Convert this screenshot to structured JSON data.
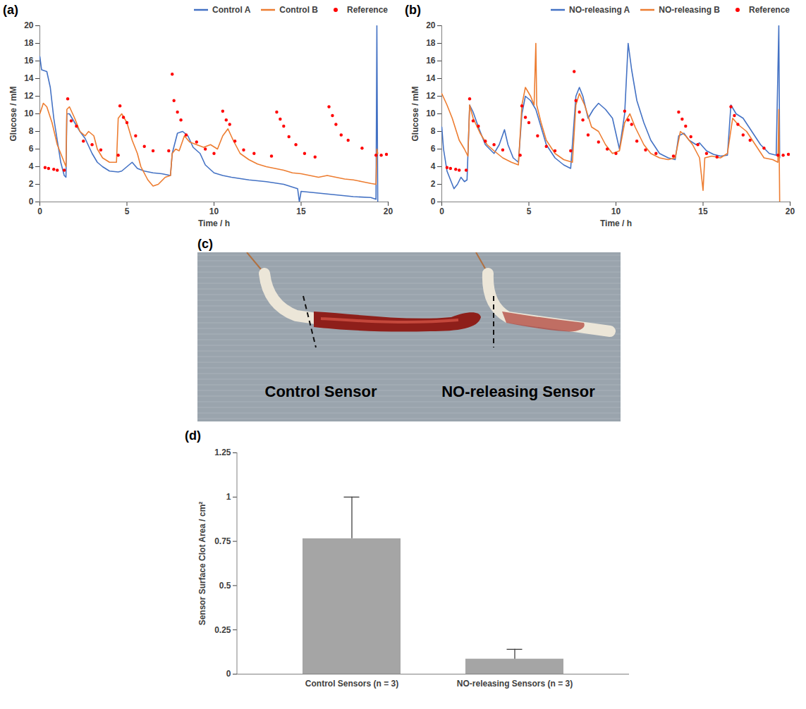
{
  "chart_data": [
    {
      "panel_label": "(a)",
      "type": "line",
      "x_label": "Time / h",
      "y_label": "Glucose / mM",
      "xlim": [
        0,
        20
      ],
      "xticks": [
        0,
        5,
        10,
        15,
        20
      ],
      "ylim": [
        0,
        20
      ],
      "yticks": [
        0,
        2,
        4,
        6,
        8,
        10,
        12,
        14,
        16,
        18,
        20
      ],
      "legend": "top",
      "series": [
        {
          "name": "Control A",
          "color": "#4472c4",
          "type": "line",
          "x": [
            0,
            0.1,
            0.4,
            0.6,
            0.8,
            1,
            1.2,
            1.4,
            1.5,
            1.55,
            1.7,
            2,
            2.3,
            2.6,
            3,
            3.3,
            3.6,
            4,
            4.5,
            4.7,
            5,
            5.3,
            5.6,
            6,
            6.5,
            7,
            7.5,
            7.6,
            7.9,
            8.2,
            8.5,
            8.8,
            9.2,
            9.5,
            10,
            10.5,
            11,
            12,
            13,
            14,
            14.8,
            14.9,
            15,
            16,
            17,
            18,
            19,
            19.3,
            19.35,
            19.4
          ],
          "values": [
            16.5,
            15,
            14.8,
            13,
            9.5,
            7,
            4.5,
            3,
            2.8,
            10,
            10,
            9,
            8,
            7.2,
            5.5,
            4.5,
            4,
            3.5,
            3.4,
            3.5,
            4,
            4.5,
            3.8,
            3.5,
            3.3,
            3.2,
            3,
            5.5,
            7.8,
            8,
            7.5,
            6.2,
            5.5,
            4.2,
            3.3,
            3,
            2.8,
            2.5,
            2.3,
            2,
            1.5,
            0,
            1.2,
            1,
            0.8,
            0.6,
            0.5,
            0.3,
            20,
            0
          ]
        },
        {
          "name": "Control B",
          "color": "#ed7d31",
          "type": "line",
          "x": [
            0,
            0.2,
            0.4,
            0.7,
            1,
            1.3,
            1.5,
            1.55,
            1.7,
            2,
            2.3,
            2.6,
            2.8,
            3.1,
            3.3,
            3.6,
            4,
            4.4,
            4.5,
            4.7,
            5,
            5.3,
            5.6,
            5.8,
            6.2,
            6.5,
            6.8,
            7.2,
            7.5,
            7.6,
            7.8,
            8,
            8.3,
            8.6,
            9,
            9.4,
            9.8,
            10.2,
            10.5,
            10.8,
            11.1,
            11.5,
            12,
            12.5,
            13,
            13.5,
            14,
            14.5,
            15,
            15.5,
            16,
            16.5,
            17,
            17.5,
            18,
            18.5,
            19,
            19.3,
            19.35,
            19.4
          ],
          "values": [
            10,
            11.2,
            10.8,
            9,
            6.5,
            5,
            4,
            10.5,
            10.8,
            9.5,
            8,
            7.5,
            8,
            7.5,
            6,
            5,
            4.5,
            4.5,
            9.5,
            10,
            9,
            7,
            5.5,
            4,
            2.5,
            1.8,
            2,
            2.8,
            3,
            5.5,
            6,
            5.8,
            7.5,
            6.8,
            6.5,
            6.2,
            6.5,
            6,
            7.5,
            8.3,
            7,
            5.5,
            4.8,
            4.3,
            4,
            3.8,
            3.6,
            3.3,
            3.2,
            3,
            2.8,
            3,
            2.8,
            2.6,
            2.5,
            2.3,
            2.1,
            2,
            6,
            5.5
          ]
        },
        {
          "name": "Reference",
          "color": "#ff0000",
          "type": "scatter",
          "marker": "dot",
          "x": [
            0.3,
            0.5,
            0.8,
            1,
            1.4,
            1.6,
            1.8,
            2.1,
            2.5,
            3,
            3.5,
            4.5,
            4.6,
            4.8,
            5,
            5.5,
            6,
            6.5,
            7.4,
            7.6,
            7.7,
            7.9,
            8.1,
            8.4,
            9,
            9.5,
            10,
            10.5,
            10.7,
            10.9,
            11.2,
            11.7,
            12.3,
            13.3,
            13.6,
            13.8,
            14,
            14.3,
            14.7,
            15.2,
            15.8,
            16.6,
            16.8,
            17,
            17.3,
            17.7,
            18.5,
            19.3,
            19.6,
            19.9
          ],
          "values": [
            3.9,
            3.8,
            3.7,
            3.6,
            3.6,
            11.7,
            9.2,
            8.6,
            6.9,
            6.5,
            5.9,
            5.3,
            10.9,
            9.6,
            9,
            7.5,
            6.3,
            5.8,
            5.8,
            14.5,
            11.5,
            10.2,
            9.3,
            7.6,
            6.8,
            6,
            5.5,
            10.3,
            9.3,
            8.8,
            6.9,
            5.9,
            5.5,
            5.2,
            10.2,
            9.4,
            8.6,
            7.4,
            6.5,
            5.5,
            5.1,
            10.8,
            9.8,
            8.8,
            7.6,
            7,
            6.1,
            5.3,
            5.3,
            5.4
          ]
        }
      ]
    },
    {
      "panel_label": "(b)",
      "type": "line",
      "x_label": "Time / h",
      "y_label": "Glucose / mM",
      "xlim": [
        0,
        20
      ],
      "xticks": [
        0,
        5,
        10,
        15,
        20
      ],
      "ylim": [
        0,
        20
      ],
      "yticks": [
        0,
        2,
        4,
        6,
        8,
        10,
        12,
        14,
        16,
        18,
        20
      ],
      "legend": "top",
      "series": [
        {
          "name": "NO-releasing A",
          "color": "#4472c4",
          "type": "line",
          "x": [
            0,
            0.1,
            0.3,
            0.5,
            0.7,
            0.9,
            1.1,
            1.3,
            1.45,
            1.6,
            1.8,
            2.1,
            2.5,
            3,
            3.3,
            3.6,
            3.8,
            4.1,
            4.4,
            4.6,
            4.8,
            5.1,
            5.4,
            5.7,
            6,
            6.5,
            7,
            7.4,
            7.7,
            7.9,
            8.1,
            8.4,
            8.7,
            9,
            9.4,
            9.8,
            10.2,
            10.5,
            10.7,
            10.9,
            11.2,
            11.6,
            12,
            12.5,
            13,
            13.4,
            13.6,
            13.9,
            14.2,
            14.6,
            14.8,
            15.2,
            15.6,
            16,
            16.4,
            16.6,
            16.9,
            17.3,
            17.8,
            18.3,
            18.8,
            19.2,
            19.35,
            19.4
          ],
          "values": [
            8.5,
            6,
            3.5,
            2.5,
            1.5,
            2,
            2.8,
            2.3,
            2.5,
            11,
            10.2,
            8.5,
            6.5,
            5.5,
            6.5,
            8.2,
            6.5,
            5,
            4.5,
            10,
            12,
            11.5,
            10.5,
            8.5,
            6.5,
            5,
            4.2,
            3.8,
            12,
            13,
            12,
            9.5,
            10.5,
            11.2,
            10.5,
            9.5,
            6,
            10,
            18,
            15,
            11.5,
            9,
            7,
            5.5,
            5,
            4.8,
            7.5,
            7.8,
            7,
            6.5,
            6.7,
            5.8,
            5.4,
            5.2,
            5.3,
            11,
            10,
            9.5,
            8,
            6.5,
            5.5,
            5.3,
            20,
            5
          ]
        },
        {
          "name": "NO-releasing B",
          "color": "#ed7d31",
          "type": "line",
          "x": [
            0,
            0.3,
            0.6,
            1,
            1.3,
            1.5,
            1.6,
            1.8,
            2.2,
            2.6,
            3,
            3.5,
            4,
            4.4,
            4.6,
            4.8,
            5.1,
            5.3,
            5.4,
            5.45,
            5.7,
            6,
            6.5,
            7,
            7.5,
            7.7,
            7.9,
            8.2,
            8.6,
            9,
            9.4,
            9.8,
            10.2,
            10.5,
            10.8,
            11.1,
            11.6,
            12,
            12.5,
            13,
            13.4,
            13.7,
            14,
            14.4,
            14.8,
            15,
            15.1,
            15.5,
            16,
            16.4,
            16.7,
            17,
            17.5,
            18,
            18.5,
            19,
            19.3,
            19.35,
            19.4
          ],
          "values": [
            12.3,
            11,
            9.5,
            7,
            6,
            5.2,
            11,
            9.5,
            7.8,
            6.5,
            5.8,
            5,
            4.5,
            4.2,
            11,
            13,
            12,
            11,
            18,
            11,
            9,
            7,
            5.5,
            4.8,
            4.5,
            11,
            12.3,
            11,
            8.5,
            8,
            6.5,
            5.5,
            5.8,
            9,
            10,
            8.5,
            6.5,
            5.5,
            5,
            4.8,
            5,
            8,
            7.5,
            6.5,
            5,
            1.3,
            5,
            5.2,
            5,
            5.5,
            9.5,
            8.8,
            8,
            6.5,
            5,
            4.8,
            4.5,
            10.5,
            0
          ]
        },
        {
          "name": "Reference",
          "color": "#ff0000",
          "type": "scatter",
          "marker": "dot",
          "x": [
            0.3,
            0.5,
            0.8,
            1,
            1.4,
            1.6,
            1.8,
            2.1,
            2.5,
            3,
            3.5,
            4.5,
            4.6,
            4.8,
            5,
            5.5,
            6,
            6.5,
            7.4,
            7.6,
            7.7,
            7.9,
            8.1,
            8.4,
            9,
            9.5,
            10,
            10.5,
            10.7,
            10.9,
            11.2,
            11.7,
            12.3,
            13.3,
            13.6,
            13.8,
            14,
            14.3,
            14.7,
            15.2,
            15.8,
            16.6,
            16.8,
            17,
            17.3,
            17.7,
            18.5,
            19.3,
            19.6,
            19.9
          ],
          "values": [
            3.9,
            3.8,
            3.7,
            3.6,
            3.6,
            11.7,
            9.2,
            8.6,
            6.9,
            6.5,
            5.9,
            5.3,
            10.9,
            9.6,
            9,
            7.5,
            6.3,
            5.8,
            5.8,
            14.8,
            11.5,
            10.2,
            9.3,
            7.6,
            6.8,
            6,
            5.5,
            10.3,
            9.3,
            8.8,
            6.9,
            5.9,
            5.5,
            5.2,
            10.2,
            9.4,
            8.6,
            7.4,
            6.5,
            5.5,
            5.1,
            10.8,
            9.8,
            8.8,
            7.6,
            7,
            6.1,
            5.3,
            5.3,
            5.4
          ]
        }
      ]
    },
    {
      "panel_label": "(c)",
      "type": "image",
      "labels": [
        "Control Sensor",
        "NO-releasing Sensor"
      ]
    },
    {
      "panel_label": "(d)",
      "type": "bar",
      "y_label": "Sensor Surface Clot Area / cm²",
      "categories": [
        "Control Sensors (n = 3)",
        "NO-releasing Sensors (n = 3)"
      ],
      "values": [
        0.765,
        0.085
      ],
      "errors": [
        0.235,
        0.055
      ],
      "color": "#a5a5a5",
      "ylim": [
        0,
        1.25
      ],
      "yticks": [
        0,
        0.25,
        0.5,
        0.75,
        1,
        1.25
      ]
    }
  ]
}
